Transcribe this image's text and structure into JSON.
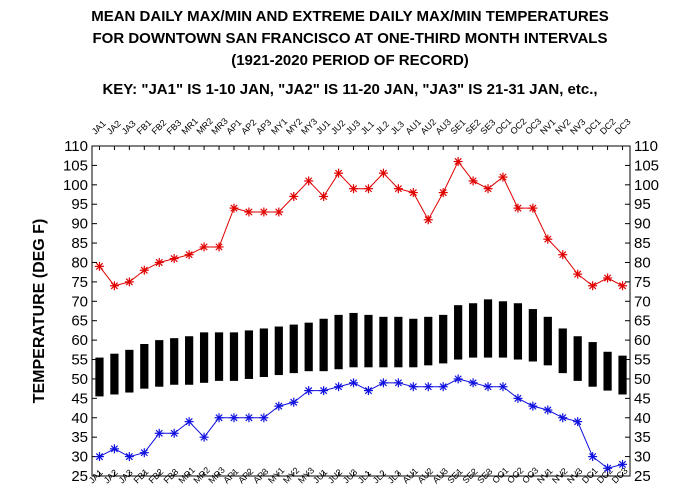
{
  "title_lines": [
    "MEAN DAILY MAX/MIN AND EXTREME DAILY MAX/MIN TEMPERATURES",
    "FOR DOWNTOWN SAN FRANCISCO AT ONE-THIRD MONTH INTERVALS",
    "(1921-2020 PERIOD OF RECORD)",
    "KEY: \"JA1\" IS 1-10 JAN, \"JA2\" IS 11-20 JAN, \"JA3\" IS 21-31 JAN, etc.,"
  ],
  "chart_data": {
    "type": "bar",
    "ylabel": "TEMPERATURE (DEG F)",
    "xlabel": "",
    "ylim": [
      25,
      110
    ],
    "yticks": [
      25,
      30,
      35,
      40,
      45,
      50,
      55,
      60,
      65,
      70,
      75,
      80,
      85,
      90,
      95,
      100,
      105,
      110
    ],
    "grid": false,
    "categories": [
      "JA1",
      "JA2",
      "JA3",
      "FB1",
      "FB2",
      "FB3",
      "MR1",
      "MR2",
      "MR3",
      "AP1",
      "AP2",
      "AP3",
      "MY1",
      "MY2",
      "MY3",
      "JU1",
      "JU2",
      "JU3",
      "JL1",
      "JL2",
      "JL3",
      "AU1",
      "AU2",
      "AU3",
      "SE1",
      "SE2",
      "SE3",
      "OC1",
      "OC2",
      "OC3",
      "NV1",
      "NV2",
      "NV3",
      "DC1",
      "DC2",
      "DC3"
    ],
    "mean_max": [
      55.5,
      56.5,
      57.5,
      59,
      60,
      60.5,
      61,
      62,
      62,
      62,
      62.5,
      63,
      63.5,
      64,
      64.5,
      65.5,
      66.5,
      67,
      66.5,
      66,
      66,
      65.5,
      66,
      66.5,
      69,
      69.5,
      70.5,
      70,
      69.5,
      68,
      66,
      63,
      61,
      59.5,
      57,
      56
    ],
    "mean_min": [
      45.5,
      46,
      46.5,
      47.5,
      48,
      48.5,
      48.5,
      49,
      49.5,
      49.5,
      50,
      50.5,
      51,
      51.5,
      52,
      52,
      52.5,
      53,
      53,
      53,
      53,
      53,
      53.5,
      54,
      55,
      55.5,
      55.5,
      55.5,
      55,
      54.5,
      53.5,
      51.5,
      49.5,
      48,
      47,
      46
    ],
    "extreme_max": [
      79,
      74,
      75,
      78,
      80,
      81,
      82,
      84,
      84,
      94,
      93,
      93,
      93,
      97,
      101,
      97,
      103,
      99,
      99,
      103,
      99,
      98,
      91,
      98,
      106,
      101,
      99,
      102,
      94,
      94,
      86,
      82,
      77,
      74,
      76,
      74
    ],
    "extreme_min": [
      30,
      32,
      30,
      31,
      36,
      36,
      39,
      35,
      40,
      40,
      40,
      40,
      43,
      44,
      47,
      47,
      48,
      49,
      47,
      49,
      49,
      48,
      48,
      48,
      50,
      49,
      48,
      48,
      45,
      43,
      42,
      40,
      39,
      30,
      27,
      28
    ]
  }
}
